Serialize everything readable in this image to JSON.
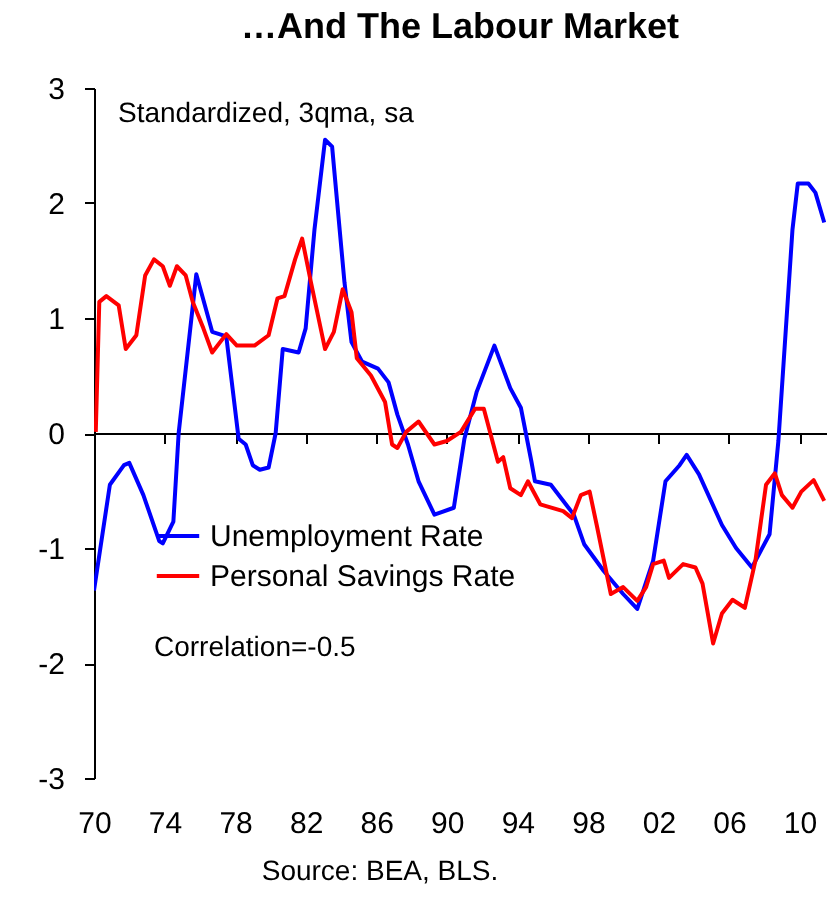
{
  "chart_data": {
    "type": "line",
    "title": "…And The Labour Market",
    "annotations": [
      "Standardized, 3qma, sa",
      "Correlation=-0.5",
      "Source: BEA, BLS."
    ],
    "xlim": [
      1970,
      2011.5
    ],
    "xticks": [
      {
        "value": 1970,
        "label": "70"
      },
      {
        "value": 1974,
        "label": "74"
      },
      {
        "value": 1978,
        "label": "78"
      },
      {
        "value": 1982,
        "label": "82"
      },
      {
        "value": 1986,
        "label": "86"
      },
      {
        "value": 1990,
        "label": "90"
      },
      {
        "value": 1994,
        "label": "94"
      },
      {
        "value": 1998,
        "label": "98"
      },
      {
        "value": 2002,
        "label": "02"
      },
      {
        "value": 2006,
        "label": "06"
      },
      {
        "value": 2010,
        "label": "10"
      }
    ],
    "ylim": [
      -3,
      3
    ],
    "yticks": [
      -3,
      -2,
      -1,
      0,
      1,
      2,
      3
    ],
    "legend": "bottom left",
    "series": [
      {
        "name": "Unemployment Rate",
        "color": "#0000ff",
        "x": [
          1970,
          1970.9,
          1971.7,
          1972,
          1972.8,
          1973.7,
          1973.9,
          1974.5,
          1974.8,
          1975.8,
          1976.7,
          1977.5,
          1978.2,
          1978.6,
          1979,
          1979.4,
          1979.9,
          1980.3,
          1980.7,
          1981.6,
          1982,
          1982.5,
          1983.1,
          1983.5,
          1983.6,
          1984.2,
          1984.6,
          1985.2,
          1986.1,
          1986.7,
          1987.2,
          1987.8,
          1988.4,
          1989.3,
          1990.4,
          1991,
          1991.7,
          1992.7,
          1993.6,
          1994.2,
          1994.8,
          1995,
          1995.9,
          1997.2,
          1997.8,
          1998.9,
          2000,
          2000.8,
          2001.7,
          2002.4,
          2003.2,
          2003.6,
          2004.3,
          2005.6,
          2006.4,
          2007.3,
          2008.3,
          2008.8,
          2009.6,
          2009.9,
          2010.5,
          2010.9,
          2011.4
        ],
        "values": [
          -1.37,
          -0.45,
          -0.28,
          -0.26,
          -0.54,
          -0.94,
          -0.96,
          -0.77,
          0,
          1.38,
          0.88,
          0.84,
          -0.05,
          -0.1,
          -0.28,
          -0.32,
          -0.3,
          0,
          0.73,
          0.7,
          0.91,
          1.77,
          2.55,
          2.49,
          2.32,
          1.31,
          0.79,
          0.62,
          0.56,
          0.44,
          0.16,
          -0.1,
          -0.42,
          -0.71,
          -0.65,
          -0.05,
          0.36,
          0.76,
          0.39,
          0.22,
          -0.25,
          -0.42,
          -0.45,
          -0.71,
          -0.97,
          -1.2,
          -1.4,
          -1.53,
          -1.11,
          -0.42,
          -0.28,
          -0.19,
          -0.36,
          -0.8,
          -1,
          -1.17,
          -0.88,
          -0.07,
          1.77,
          2.17,
          2.17,
          2.09,
          1.83
        ]
      },
      {
        "name": "Personal Savings Rate",
        "color": "#ff0000",
        "x": [
          1970.1,
          1970.3,
          1970.7,
          1971.4,
          1971.8,
          1972.4,
          1972.9,
          1973.4,
          1973.9,
          1974.3,
          1974.7,
          1975.2,
          1975.6,
          1976.2,
          1976.7,
          1977.5,
          1978.1,
          1979.1,
          1979.9,
          1980.4,
          1980.8,
          1981.4,
          1981.8,
          1982.3,
          1983.1,
          1983.6,
          1984.1,
          1984.6,
          1984.9,
          1985.7,
          1986.5,
          1986.9,
          1987.2,
          1987.7,
          1988.4,
          1989.3,
          1990,
          1990.8,
          1991.6,
          1992.1,
          1992.9,
          1993.2,
          1993.6,
          1994.2,
          1994.6,
          1995.3,
          1996.6,
          1997.1,
          1997.6,
          1998.1,
          1998.5,
          1999.3,
          2000,
          2000.8,
          2001.3,
          2001.7,
          2002.3,
          2002.6,
          2003.4,
          2004.1,
          2004.5,
          2005.1,
          2005.6,
          2006.2,
          2006.9,
          2007.5,
          2008.1,
          2008.6,
          2009,
          2009.6,
          2010.1,
          2010.8,
          2011.4
        ],
        "values": [
          0.01,
          1.14,
          1.19,
          1.11,
          0.73,
          0.85,
          1.37,
          1.51,
          1.45,
          1.28,
          1.45,
          1.37,
          1.14,
          0.91,
          0.7,
          0.86,
          0.76,
          0.76,
          0.85,
          1.17,
          1.19,
          1.51,
          1.69,
          1.31,
          0.73,
          0.88,
          1.25,
          1.05,
          0.65,
          0.5,
          0.27,
          -0.1,
          -0.13,
          0.01,
          0.1,
          -0.1,
          -0.07,
          0.01,
          0.21,
          0.21,
          -0.25,
          -0.21,
          -0.48,
          -0.54,
          -0.42,
          -0.62,
          -0.68,
          -0.74,
          -0.54,
          -0.51,
          -0.8,
          -1.4,
          -1.34,
          -1.46,
          -1.34,
          -1.14,
          -1.11,
          -1.26,
          -1.14,
          -1.17,
          -1.31,
          -1.83,
          -1.57,
          -1.45,
          -1.52,
          -1.11,
          -0.45,
          -0.35,
          -0.54,
          -0.65,
          -0.51,
          -0.41,
          -0.59
        ]
      }
    ]
  }
}
